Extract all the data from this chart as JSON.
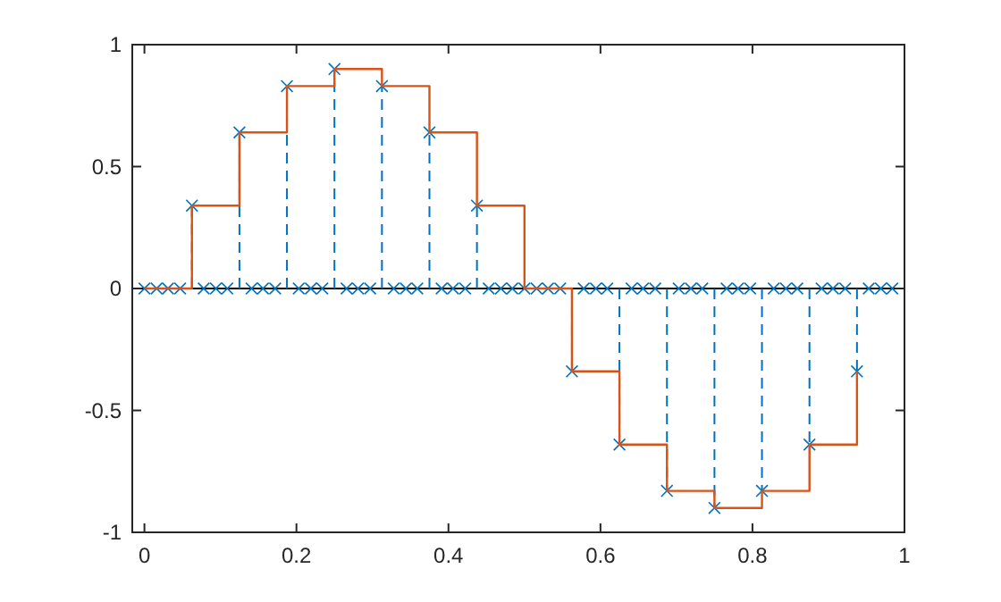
{
  "chart_data": {
    "type": "lollipop",
    "xlim": [
      -0.016,
      1
    ],
    "xticks": [
      0,
      0.2,
      0.4,
      0.6,
      0.8,
      1
    ],
    "ylim": [
      -1,
      1
    ],
    "yticks": [
      -1,
      -0.5,
      0,
      0.5,
      1
    ],
    "ref_lines": [
      {
        "axis": "y",
        "value": 0,
        "color": "#000000",
        "line_style": "solid"
      }
    ],
    "series": [
      {
        "color": "#0072bd",
        "marker": "cross",
        "line_style": "dashed",
        "x": [
          0,
          0.016,
          0.031,
          0.047,
          0.0625,
          0.078,
          0.094,
          0.109,
          0.125,
          0.141,
          0.156,
          0.172,
          0.1875,
          0.203,
          0.219,
          0.234,
          0.25,
          0.266,
          0.281,
          0.297,
          0.3125,
          0.328,
          0.344,
          0.359,
          0.375,
          0.391,
          0.406,
          0.422,
          0.4375,
          0.453,
          0.469,
          0.484,
          0.5,
          0.516,
          0.531,
          0.547,
          0.5625,
          0.578,
          0.594,
          0.609,
          0.625,
          0.641,
          0.656,
          0.672,
          0.6875,
          0.703,
          0.719,
          0.734,
          0.75,
          0.766,
          0.781,
          0.797,
          0.8125,
          0.828,
          0.844,
          0.859,
          0.875,
          0.891,
          0.906,
          0.922,
          0.9375,
          0.953,
          0.969,
          0.984
        ],
        "values": [
          0,
          0,
          0,
          0,
          0.34,
          0,
          0,
          0,
          0.64,
          0,
          0,
          0,
          0.83,
          0,
          0,
          0,
          0.9,
          0,
          0,
          0,
          0.83,
          0,
          0,
          0,
          0.64,
          0,
          0,
          0,
          0.34,
          0,
          0,
          0,
          0,
          0,
          0,
          0,
          -0.34,
          0,
          0,
          0,
          -0.64,
          0,
          0,
          0,
          -0.83,
          0,
          0,
          0,
          -0.9,
          0,
          0,
          0,
          -0.83,
          0,
          0,
          0,
          -0.64,
          0,
          0,
          0,
          -0.34,
          0,
          0,
          0
        ]
      },
      {
        "type": "step",
        "color": "#d95319",
        "marker": "none",
        "line_style": "solid",
        "x": [
          0,
          0.0625,
          0.125,
          0.1875,
          0.25,
          0.3125,
          0.375,
          0.4375,
          0.5,
          0.5625,
          0.625,
          0.6875,
          0.75,
          0.8125,
          0.875,
          0.9375
        ],
        "values": [
          0,
          0.34,
          0.64,
          0.83,
          0.9,
          0.83,
          0.64,
          0.34,
          0,
          -0.34,
          -0.64,
          -0.83,
          -0.9,
          -0.83,
          -0.64,
          -0.34
        ]
      }
    ]
  }
}
